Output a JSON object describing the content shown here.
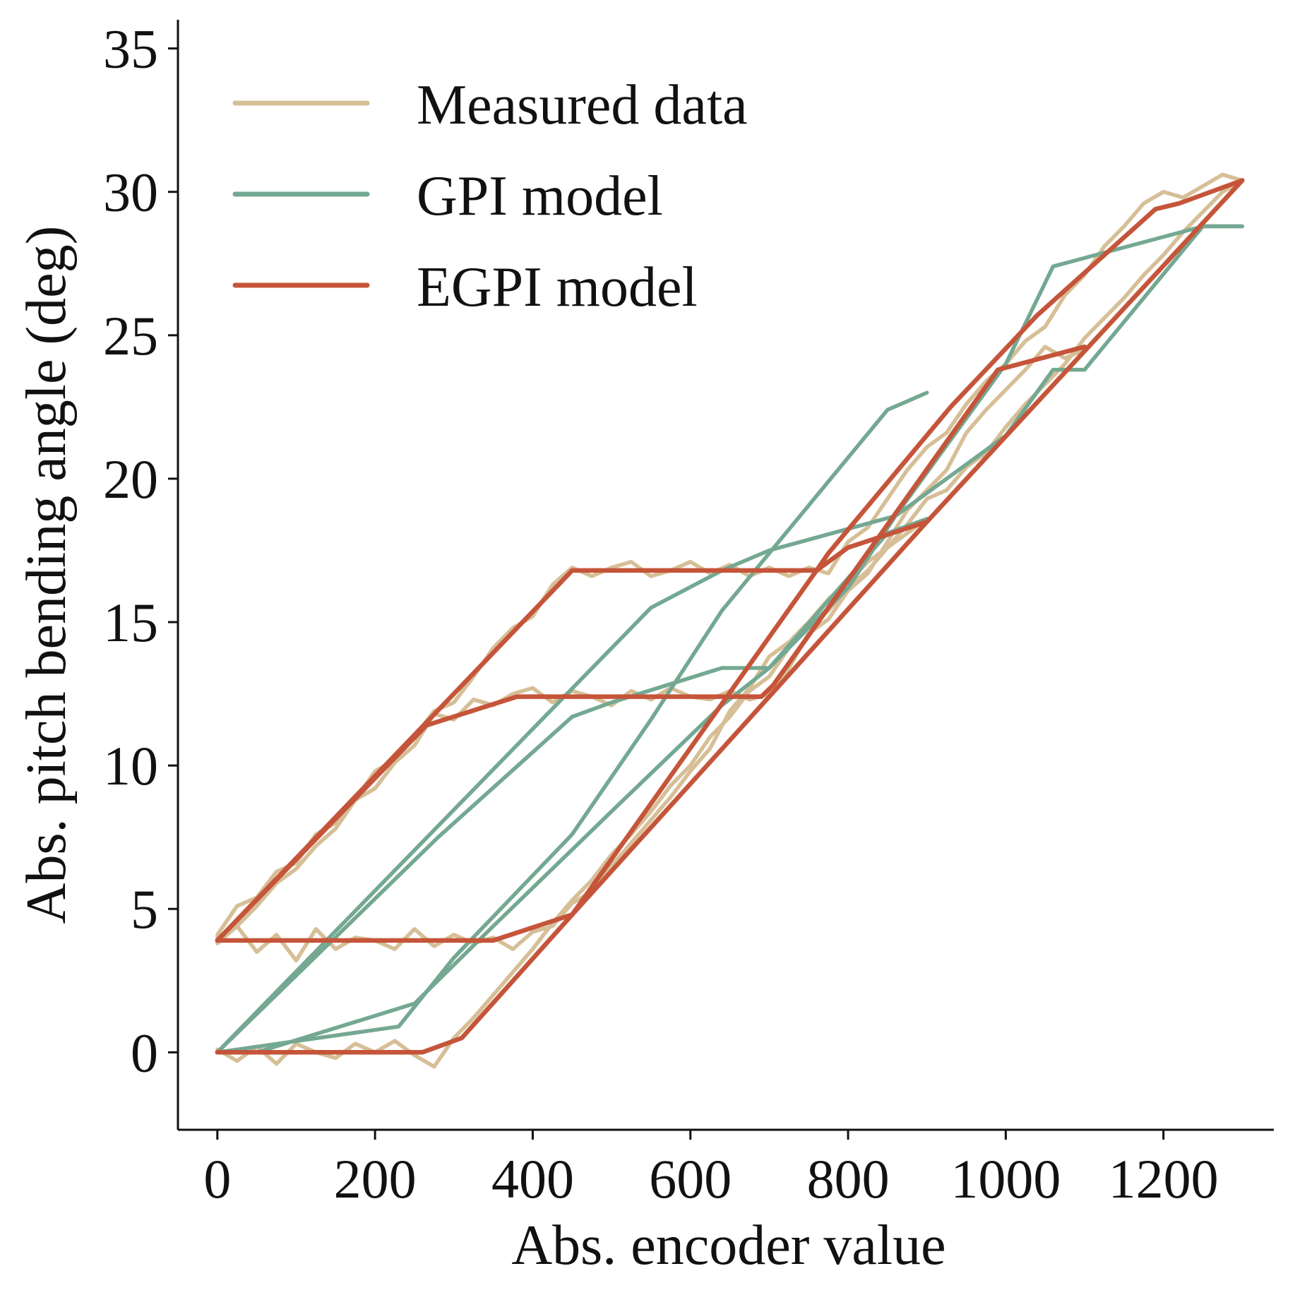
{
  "chart_data": {
    "type": "line",
    "title": "",
    "xlabel": "Abs. encoder value",
    "ylabel": "Abs. pitch bending angle (deg)",
    "xlim": [
      -50,
      1340
    ],
    "ylim": [
      -2.7,
      36.0
    ],
    "xticks": [
      0,
      200,
      400,
      600,
      800,
      1000,
      1200
    ],
    "yticks": [
      0,
      5,
      10,
      15,
      20,
      25,
      30,
      35
    ],
    "grid": false,
    "legend_position": "top-left",
    "colors": {
      "measured": "#d6bf97",
      "gpi": "#74a892",
      "egpi": "#c5553a",
      "axis": "#111111"
    },
    "series": [
      {
        "name": "Measured data",
        "color": "#d6bf97",
        "segments": [
          {
            "x": [
              0,
              25,
              50,
              75,
              100,
              125,
              150,
              175,
              200,
              225,
              250,
              275,
              300,
              325,
              350,
              375,
              400,
              425,
              450,
              475,
              500,
              525,
              550,
              575,
              600,
              625,
              650,
              675,
              700,
              725,
              750,
              775,
              800,
              825,
              850,
              875,
              900,
              925,
              950,
              975,
              1000,
              1025,
              1050,
              1075,
              1100,
              1125,
              1150,
              1175,
              1200,
              1225,
              1250,
              1275,
              1300
            ],
            "y": [
              4.1,
              5.1,
              5.4,
              6.3,
              6.6,
              7.6,
              8.0,
              8.8,
              9.8,
              10.2,
              11.0,
              11.9,
              12.2,
              13.1,
              14.1,
              14.8,
              15.2,
              16.3,
              16.9,
              16.6,
              16.9,
              17.1,
              16.6,
              16.8,
              17.1,
              16.7,
              17.0,
              16.6,
              16.9,
              16.6,
              16.9,
              16.7,
              17.8,
              18.3,
              19.3,
              20.3,
              21.1,
              21.6,
              22.6,
              23.4,
              24.0,
              24.8,
              25.3,
              26.4,
              27.1,
              28.1,
              28.8,
              29.6,
              30.0,
              29.8,
              30.2,
              30.6,
              30.4
            ]
          },
          {
            "x": [
              0,
              25,
              50,
              75,
              100,
              125,
              150,
              175,
              200,
              225,
              250,
              275,
              300,
              325,
              350,
              375,
              400,
              425,
              450,
              475,
              500,
              525,
              550,
              575,
              600,
              625,
              650,
              675,
              700,
              725,
              750,
              775,
              800,
              825,
              850,
              875,
              900,
              925,
              950,
              975,
              1000,
              1025,
              1050,
              1075,
              1100
            ],
            "y": [
              4.0,
              4.4,
              5.1,
              5.9,
              6.4,
              7.2,
              7.8,
              8.8,
              9.2,
              10.1,
              10.7,
              11.8,
              11.6,
              12.3,
              12.1,
              12.5,
              12.7,
              12.2,
              12.6,
              12.4,
              12.1,
              12.6,
              12.3,
              12.7,
              12.4,
              12.3,
              12.6,
              12.3,
              12.5,
              13.4,
              14.6,
              15.1,
              16.1,
              16.7,
              17.8,
              18.9,
              19.6,
              20.3,
              21.6,
              22.4,
              23.1,
              23.8,
              24.6,
              24.2,
              24.5
            ]
          },
          {
            "x": [
              0,
              25,
              50,
              75,
              100,
              125,
              150,
              175,
              200,
              225,
              250,
              275,
              300,
              325,
              350,
              375,
              400,
              425,
              450,
              475,
              500,
              525,
              550,
              575,
              600,
              625,
              650,
              675,
              700,
              725,
              750,
              775,
              800,
              825,
              850,
              875,
              900,
              925,
              950,
              975,
              1000,
              1025,
              1050,
              1075,
              1100,
              1125,
              1150,
              1175,
              1200,
              1225,
              1250,
              1275,
              1300
            ],
            "y": [
              3.8,
              4.4,
              3.5,
              4.1,
              3.2,
              4.3,
              3.6,
              4.0,
              3.9,
              3.6,
              4.3,
              3.7,
              4.1,
              3.8,
              4.0,
              3.6,
              4.2,
              4.4,
              5.2,
              5.6,
              6.5,
              7.3,
              8.1,
              8.9,
              9.8,
              10.6,
              11.9,
              12.7,
              13.8,
              14.3,
              15.0,
              15.8,
              16.4,
              17.1,
              17.6,
              18.4,
              19.3,
              19.6,
              20.4,
              20.9,
              21.8,
              22.6,
              23.3,
              24.0,
              24.9,
              25.6,
              26.3,
              27.1,
              27.8,
              28.6,
              29.3,
              30.0,
              30.4
            ]
          },
          {
            "x": [
              0,
              25,
              50,
              75,
              100,
              125,
              150,
              175,
              200,
              225,
              250,
              275,
              300,
              325,
              350,
              375,
              400,
              425,
              450,
              475,
              500,
              525,
              550,
              575,
              600,
              625,
              650,
              675,
              700,
              725,
              750,
              775,
              800,
              825,
              850,
              875,
              900
            ],
            "y": [
              0.1,
              -0.3,
              0.2,
              -0.4,
              0.3,
              0.0,
              -0.2,
              0.3,
              0.0,
              0.4,
              -0.1,
              -0.5,
              0.5,
              1.2,
              2.0,
              2.8,
              3.6,
              4.5,
              5.3,
              6.0,
              6.9,
              7.6,
              8.4,
              9.3,
              10.0,
              11.0,
              11.7,
              12.6,
              13.1,
              14.1,
              14.8,
              15.4,
              16.2,
              16.8,
              17.6,
              18.1,
              18.6
            ]
          }
        ]
      },
      {
        "name": "GPI model",
        "color": "#74a892",
        "segments": [
          {
            "x": [
              0,
              550,
              640,
              700,
              860,
              1000,
              1060,
              1100,
              1250,
              1300
            ],
            "y": [
              0.0,
              15.5,
              16.8,
              17.5,
              18.7,
              21.5,
              23.8,
              23.8,
              28.8,
              28.8
            ]
          },
          {
            "x": [
              0,
              280,
              450,
              500,
              640,
              700,
              800,
              860,
              1000,
              1060,
              1250,
              1300
            ],
            "y": [
              0.0,
              7.5,
              11.7,
              12.2,
              13.4,
              13.4,
              16.2,
              18.7,
              24.0,
              27.4,
              28.8,
              28.8
            ]
          },
          {
            "x": [
              0,
              230,
              300,
              450,
              550,
              640,
              700,
              850,
              900
            ],
            "y": [
              0.0,
              0.9,
              3.3,
              7.6,
              11.6,
              15.4,
              17.4,
              22.4,
              23.0
            ]
          },
          {
            "x": [
              0,
              50,
              250,
              350,
              500,
              640,
              700,
              850,
              900
            ],
            "y": [
              0.0,
              0.0,
              1.7,
              4.4,
              8.4,
              12.1,
              13.4,
              18.1,
              18.6
            ]
          }
        ]
      },
      {
        "name": "EGPI model",
        "color": "#c5553a",
        "segments": [
          {
            "x": [
              0,
              450,
              760,
              775,
              930,
              1040,
              1190,
              1220,
              1300
            ],
            "y": [
              3.9,
              16.8,
              16.8,
              17.4,
              22.5,
              25.7,
              29.4,
              29.6,
              30.4
            ]
          },
          {
            "x": [
              0,
              265,
              380,
              690,
              705,
              990,
              1100
            ],
            "y": [
              3.9,
              11.4,
              12.4,
              12.4,
              12.8,
              23.8,
              24.6
            ]
          },
          {
            "x": [
              0,
              350,
              450,
              760,
              800,
              900
            ],
            "y": [
              3.9,
              3.9,
              4.8,
              16.8,
              17.6,
              18.5
            ]
          },
          {
            "x": [
              0,
              260,
              310,
              450,
              700,
              900,
              1300
            ],
            "y": [
              0.0,
              0.0,
              0.5,
              4.8,
              12.4,
              18.5,
              30.4
            ]
          }
        ]
      }
    ]
  }
}
